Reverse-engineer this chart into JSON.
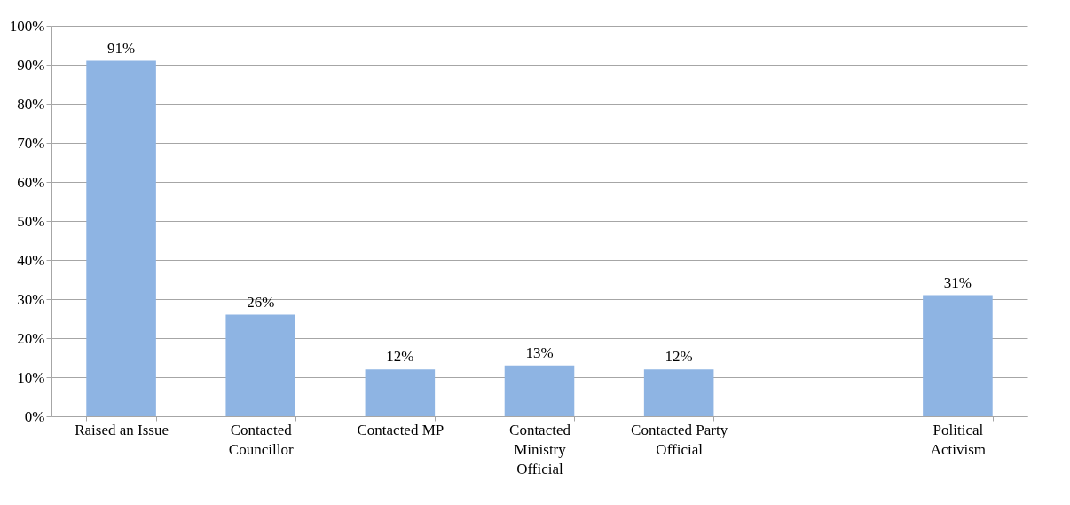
{
  "chart_data": {
    "type": "bar",
    "categories": [
      "Raised an Issue",
      "Contacted Councillor",
      "Contacted MP",
      "Contacted Ministry Official",
      "Contacted Party Official",
      null,
      "Political Activism"
    ],
    "values": [
      91,
      26,
      12,
      13,
      12,
      null,
      31
    ],
    "value_labels": [
      "91%",
      "26%",
      "12%",
      "13%",
      "12%",
      null,
      "31%"
    ],
    "color": "#8eb4e3",
    "ylim": [
      0,
      100
    ],
    "yticks": [
      {
        "value": 0,
        "label": "0%"
      },
      {
        "value": 10,
        "label": "10%"
      },
      {
        "value": 20,
        "label": "20%"
      },
      {
        "value": 30,
        "label": "30%"
      },
      {
        "value": 40,
        "label": "40%"
      },
      {
        "value": 50,
        "label": "50%"
      },
      {
        "value": 60,
        "label": "60%"
      },
      {
        "value": 70,
        "label": "70%"
      },
      {
        "value": 80,
        "label": "80%"
      },
      {
        "value": 90,
        "label": "90%"
      },
      {
        "value": 100,
        "label": "100%"
      }
    ],
    "grid": "y"
  }
}
